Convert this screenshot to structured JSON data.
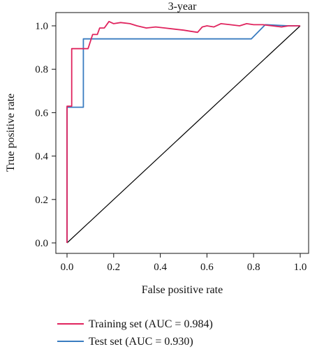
{
  "chart_data": {
    "type": "line",
    "title": "3-year",
    "xlabel": "False positive rate",
    "ylabel": "True positive rate",
    "xlim": [
      0,
      1
    ],
    "ylim": [
      0,
      1
    ],
    "x_ticks": [
      "0.0",
      "0.2",
      "0.4",
      "0.6",
      "0.8",
      "1.0"
    ],
    "y_ticks": [
      "0.0",
      "0.2",
      "0.4",
      "0.6",
      "0.8",
      "1.0"
    ],
    "legend_position": "bottom",
    "reference_line": {
      "x": [
        0,
        1
      ],
      "y": [
        0,
        1
      ],
      "color": "#000000"
    },
    "series": [
      {
        "name": "Training set (AUC = 0.984)",
        "color": "#e0245e",
        "x": [
          0,
          0,
          0.02,
          0.02,
          0.06,
          0.09,
          0.11,
          0.13,
          0.14,
          0.16,
          0.18,
          0.2,
          0.23,
          0.27,
          0.3,
          0.34,
          0.38,
          0.42,
          0.46,
          0.5,
          0.53,
          0.56,
          0.58,
          0.6,
          0.63,
          0.66,
          0.7,
          0.74,
          0.77,
          0.8,
          0.84,
          0.88,
          0.92,
          0.95,
          1.0
        ],
        "y": [
          0,
          0.63,
          0.63,
          0.895,
          0.895,
          0.895,
          0.96,
          0.96,
          0.99,
          0.99,
          1.02,
          1.01,
          1.015,
          1.01,
          1.0,
          0.99,
          0.995,
          0.99,
          0.985,
          0.98,
          0.975,
          0.97,
          0.995,
          1.0,
          0.995,
          1.01,
          1.005,
          1.0,
          1.01,
          1.005,
          1.005,
          1.0,
          0.995,
          1.0,
          1.0
        ]
      },
      {
        "name": "Test set (AUC = 0.930)",
        "color": "#3a7cc0",
        "x": [
          0,
          0,
          0.07,
          0.07,
          0.79,
          0.85,
          0.95,
          1.0
        ],
        "y": [
          0,
          0.625,
          0.625,
          0.94,
          0.94,
          1.005,
          1.0,
          1.0
        ]
      }
    ]
  }
}
